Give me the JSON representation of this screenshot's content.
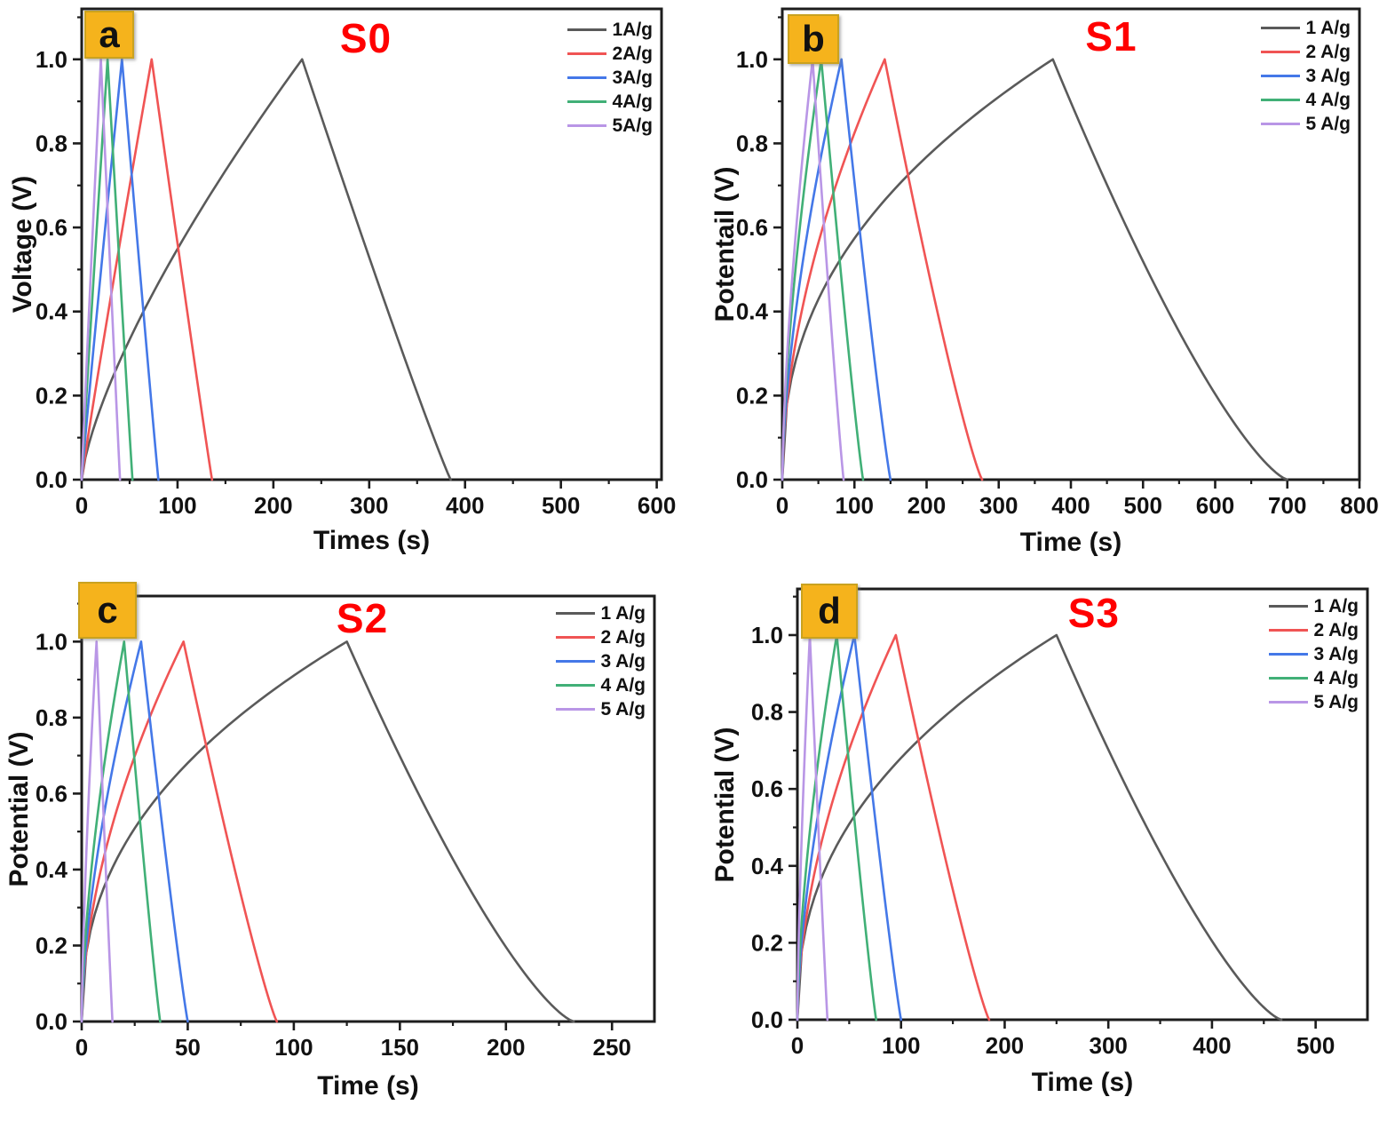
{
  "figure": {
    "background": "#ffffff",
    "title_color": "#ff0000",
    "panel_label_bg": "#f5b31c"
  },
  "chart_data": [
    {
      "id": "a",
      "panel_label": "a",
      "title": "S0",
      "type": "line",
      "xlabel": "Times (s)",
      "ylabel": "Voltage (V)",
      "xlim": [
        0,
        605
      ],
      "xticks": [
        0,
        100,
        200,
        300,
        400,
        500,
        600
      ],
      "ylim": [
        0,
        1.12
      ],
      "yticks": [
        0.0,
        0.2,
        0.4,
        0.6,
        0.8,
        1.0
      ],
      "legend_position": "top-right",
      "grid": false,
      "series": [
        {
          "name": "1A/g",
          "color": "#5a5a5a",
          "peak_v": 1.0,
          "charge_end_s": 230,
          "discharge_end_s": 385,
          "charge_curvature": 0.72,
          "discharge_curvature": 1.06
        },
        {
          "name": "2A/g",
          "color": "#f05454",
          "peak_v": 1.0,
          "charge_end_s": 73,
          "discharge_end_s": 136,
          "charge_curvature": 0.95,
          "discharge_curvature": 1.03
        },
        {
          "name": "3A/g",
          "color": "#4478e8",
          "peak_v": 1.0,
          "charge_end_s": 42,
          "discharge_end_s": 80,
          "charge_curvature": 0.95,
          "discharge_curvature": 1.03
        },
        {
          "name": "4A/g",
          "color": "#41b077",
          "peak_v": 1.0,
          "charge_end_s": 27,
          "discharge_end_s": 53,
          "charge_curvature": 0.95,
          "discharge_curvature": 1.03
        },
        {
          "name": "5A/g",
          "color": "#b996e6",
          "peak_v": 1.0,
          "charge_end_s": 20,
          "discharge_end_s": 40,
          "charge_curvature": 0.95,
          "discharge_curvature": 1.03
        }
      ]
    },
    {
      "id": "b",
      "panel_label": "b",
      "title": "S1",
      "type": "line",
      "xlabel": "Time (s)",
      "ylabel": "Potentail (V)",
      "xlim": [
        0,
        800
      ],
      "xticks": [
        0,
        100,
        200,
        300,
        400,
        500,
        600,
        700,
        800
      ],
      "ylim": [
        0,
        1.12
      ],
      "yticks": [
        0.0,
        0.2,
        0.4,
        0.6,
        0.8,
        1.0
      ],
      "legend_position": "top-right",
      "grid": false,
      "series": [
        {
          "name": "1 A/g",
          "color": "#5a5a5a",
          "peak_v": 1.0,
          "charge_end_s": 375,
          "discharge_end_s": 700,
          "charge_curvature": 0.42,
          "discharge_curvature": 1.35
        },
        {
          "name": "2 A/g",
          "color": "#f05454",
          "peak_v": 1.0,
          "charge_end_s": 142,
          "discharge_end_s": 277,
          "charge_curvature": 0.55,
          "discharge_curvature": 1.18
        },
        {
          "name": "3 A/g",
          "color": "#4478e8",
          "peak_v": 1.0,
          "charge_end_s": 82,
          "discharge_end_s": 150,
          "charge_curvature": 0.62,
          "discharge_curvature": 1.12
        },
        {
          "name": "4 A/g",
          "color": "#41b077",
          "peak_v": 1.0,
          "charge_end_s": 54,
          "discharge_end_s": 112,
          "charge_curvature": 0.64,
          "discharge_curvature": 1.12
        },
        {
          "name": "5 A/g",
          "color": "#b996e6",
          "peak_v": 1.0,
          "charge_end_s": 42,
          "discharge_end_s": 85,
          "charge_curvature": 0.66,
          "discharge_curvature": 1.1
        }
      ]
    },
    {
      "id": "c",
      "panel_label": "c",
      "title": "S2",
      "type": "line",
      "xlabel": "Time (s)",
      "ylabel": "Potential (V)",
      "xlim": [
        0,
        270
      ],
      "xticks": [
        0,
        50,
        100,
        150,
        200,
        250
      ],
      "ylim": [
        0,
        1.12
      ],
      "yticks": [
        0.0,
        0.2,
        0.4,
        0.6,
        0.8,
        1.0
      ],
      "legend_position": "top-right",
      "grid": false,
      "series": [
        {
          "name": "1 A/g",
          "color": "#5a5a5a",
          "peak_v": 1.0,
          "charge_end_s": 125,
          "discharge_end_s": 232,
          "charge_curvature": 0.42,
          "discharge_curvature": 1.35
        },
        {
          "name": "2 A/g",
          "color": "#f05454",
          "peak_v": 1.0,
          "charge_end_s": 48,
          "discharge_end_s": 92,
          "charge_curvature": 0.55,
          "discharge_curvature": 1.15
        },
        {
          "name": "3 A/g",
          "color": "#4478e8",
          "peak_v": 1.0,
          "charge_end_s": 28,
          "discharge_end_s": 50,
          "charge_curvature": 0.62,
          "discharge_curvature": 1.1
        },
        {
          "name": "4 A/g",
          "color": "#41b077",
          "peak_v": 1.0,
          "charge_end_s": 20,
          "discharge_end_s": 37,
          "charge_curvature": 0.62,
          "discharge_curvature": 1.1
        },
        {
          "name": "5 A/g",
          "color": "#b996e6",
          "peak_v": 1.0,
          "charge_end_s": 7,
          "discharge_end_s": 14.5,
          "charge_curvature": 0.7,
          "discharge_curvature": 1.05
        }
      ]
    },
    {
      "id": "d",
      "panel_label": "d",
      "title": "S3",
      "type": "line",
      "xlabel": "Time (s)",
      "ylabel": "Potential (V)",
      "xlim": [
        0,
        550
      ],
      "xticks": [
        0,
        100,
        200,
        300,
        400,
        500
      ],
      "ylim": [
        0,
        1.12
      ],
      "yticks": [
        0.0,
        0.2,
        0.4,
        0.6,
        0.8,
        1.0
      ],
      "legend_position": "top-right",
      "grid": false,
      "series": [
        {
          "name": "1 A/g",
          "color": "#5a5a5a",
          "peak_v": 1.0,
          "charge_end_s": 250,
          "discharge_end_s": 467,
          "charge_curvature": 0.42,
          "discharge_curvature": 1.35
        },
        {
          "name": "2 A/g",
          "color": "#f05454",
          "peak_v": 1.0,
          "charge_end_s": 95,
          "discharge_end_s": 185,
          "charge_curvature": 0.55,
          "discharge_curvature": 1.15
        },
        {
          "name": "3 A/g",
          "color": "#4478e8",
          "peak_v": 1.0,
          "charge_end_s": 55,
          "discharge_end_s": 100,
          "charge_curvature": 0.62,
          "discharge_curvature": 1.1
        },
        {
          "name": "4 A/g",
          "color": "#41b077",
          "peak_v": 1.0,
          "charge_end_s": 38,
          "discharge_end_s": 76,
          "charge_curvature": 0.62,
          "discharge_curvature": 1.1
        },
        {
          "name": "5 A/g",
          "color": "#b996e6",
          "peak_v": 1.0,
          "charge_end_s": 12,
          "discharge_end_s": 29,
          "charge_curvature": 0.7,
          "discharge_curvature": 1.05
        }
      ]
    }
  ]
}
